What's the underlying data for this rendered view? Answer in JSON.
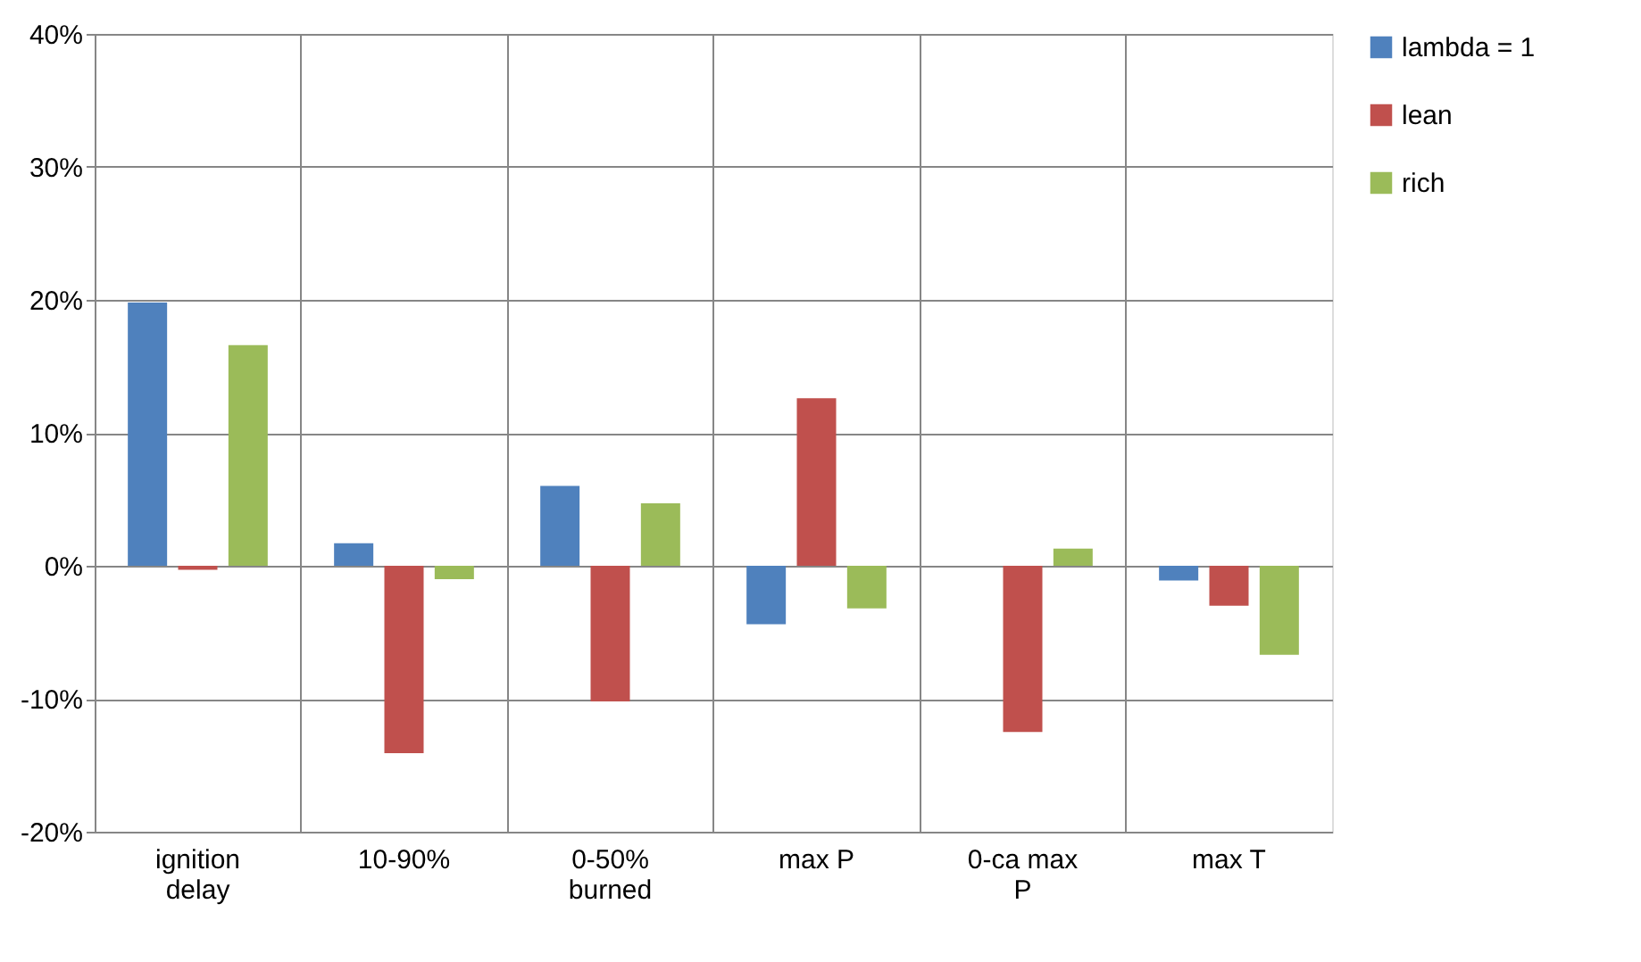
{
  "chart_data": {
    "type": "bar",
    "categories": [
      "ignition delay",
      "10-90%",
      "0-50% burned",
      "max P",
      "0-ca max P",
      "max T"
    ],
    "series": [
      {
        "name": "lambda = 1",
        "color": "#4f81bd",
        "values": [
          19.8,
          1.7,
          6.0,
          -4.4,
          0,
          -1.1
        ]
      },
      {
        "name": "lean",
        "color": "#c0504d",
        "values": [
          -0.3,
          -14.1,
          -10.2,
          12.6,
          -12.5,
          -3.0
        ]
      },
      {
        "name": "rich",
        "color": "#9bbb59",
        "values": [
          16.6,
          -1.0,
          4.7,
          -3.2,
          1.3,
          -6.7
        ]
      }
    ],
    "ylim": [
      -20,
      40
    ],
    "yticks": [
      {
        "value": -20,
        "label": "-20%"
      },
      {
        "value": -10,
        "label": "-10%"
      },
      {
        "value": 0,
        "label": "0%"
      },
      {
        "value": 10,
        "label": "10%"
      },
      {
        "value": 20,
        "label": "20%"
      },
      {
        "value": 30,
        "label": "30%"
      },
      {
        "value": 40,
        "label": "40%"
      }
    ],
    "grid": true,
    "legend": "right"
  }
}
